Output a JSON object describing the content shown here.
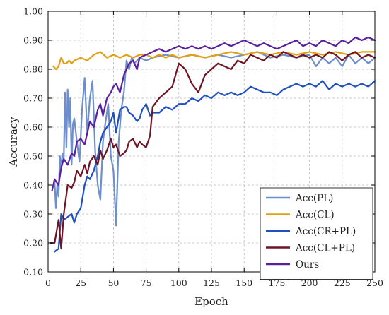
{
  "chart_data": {
    "type": "line",
    "xlabel": "Epoch",
    "ylabel": "Accuracy",
    "xlim": [
      0,
      250
    ],
    "ylim": [
      0.1,
      1.0
    ],
    "xticks": [
      0,
      25,
      50,
      75,
      100,
      125,
      150,
      175,
      200,
      225,
      250
    ],
    "yticks": [
      "0.10",
      "0.20",
      "0.30",
      "0.40",
      "0.50",
      "0.60",
      "0.70",
      "0.80",
      "0.90",
      "1.00"
    ],
    "grid": true,
    "legend_position": "bottom-right",
    "series": [
      {
        "name": "Acc(PL)",
        "color": "#6f8fcc",
        "x": [
          5,
          6,
          7,
          8,
          9,
          10,
          11,
          12,
          13,
          14,
          15,
          16,
          17,
          18,
          19,
          20,
          22,
          24,
          26,
          28,
          30,
          32,
          34,
          36,
          38,
          40,
          42,
          44,
          46,
          48,
          50,
          52,
          54,
          56,
          58,
          60,
          62,
          64,
          66,
          70,
          75,
          80,
          90,
          100,
          110,
          120,
          130,
          140,
          150,
          160,
          170,
          180,
          190,
          200,
          205,
          210,
          215,
          220,
          225,
          230,
          235,
          240,
          245,
          250
        ],
        "y": [
          0.41,
          0.32,
          0.4,
          0.36,
          0.5,
          0.46,
          0.51,
          0.49,
          0.72,
          0.53,
          0.73,
          0.6,
          0.7,
          0.47,
          0.61,
          0.63,
          0.55,
          0.48,
          0.66,
          0.77,
          0.58,
          0.7,
          0.76,
          0.52,
          0.4,
          0.35,
          0.55,
          0.62,
          0.68,
          0.5,
          0.45,
          0.26,
          0.55,
          0.66,
          0.72,
          0.83,
          0.8,
          0.84,
          0.82,
          0.84,
          0.83,
          0.84,
          0.85,
          0.84,
          0.85,
          0.84,
          0.85,
          0.84,
          0.85,
          0.86,
          0.84,
          0.85,
          0.84,
          0.85,
          0.81,
          0.84,
          0.82,
          0.84,
          0.81,
          0.85,
          0.82,
          0.84,
          0.82,
          0.84
        ]
      },
      {
        "name": "Acc(CL)",
        "color": "#e0a015",
        "x": [
          4,
          6,
          8,
          10,
          12,
          14,
          16,
          18,
          20,
          25,
          30,
          35,
          40,
          45,
          50,
          55,
          60,
          65,
          70,
          75,
          80,
          85,
          90,
          95,
          100,
          110,
          120,
          130,
          140,
          150,
          160,
          170,
          180,
          190,
          200,
          210,
          220,
          230,
          240,
          250
        ],
        "y": [
          0.81,
          0.8,
          0.81,
          0.84,
          0.82,
          0.82,
          0.83,
          0.82,
          0.83,
          0.84,
          0.83,
          0.85,
          0.86,
          0.84,
          0.85,
          0.84,
          0.85,
          0.84,
          0.85,
          0.85,
          0.84,
          0.85,
          0.84,
          0.85,
          0.84,
          0.85,
          0.84,
          0.85,
          0.86,
          0.85,
          0.86,
          0.85,
          0.86,
          0.85,
          0.86,
          0.85,
          0.86,
          0.85,
          0.86,
          0.86
        ]
      },
      {
        "name": "Acc(CR+PL)",
        "color": "#1f50c0",
        "x": [
          5,
          8,
          10,
          12,
          15,
          18,
          20,
          22,
          25,
          28,
          30,
          32,
          35,
          38,
          40,
          42,
          45,
          48,
          50,
          52,
          55,
          58,
          60,
          62,
          65,
          68,
          70,
          72,
          75,
          78,
          80,
          85,
          90,
          95,
          100,
          105,
          110,
          115,
          120,
          125,
          130,
          135,
          140,
          145,
          150,
          155,
          160,
          165,
          170,
          175,
          180,
          185,
          190,
          195,
          200,
          205,
          210,
          215,
          220,
          225,
          230,
          235,
          240,
          245,
          250
        ],
        "y": [
          0.17,
          0.18,
          0.3,
          0.28,
          0.29,
          0.3,
          0.27,
          0.3,
          0.32,
          0.4,
          0.43,
          0.42,
          0.45,
          0.5,
          0.55,
          0.58,
          0.6,
          0.62,
          0.65,
          0.58,
          0.66,
          0.67,
          0.67,
          0.65,
          0.64,
          0.62,
          0.63,
          0.66,
          0.68,
          0.64,
          0.65,
          0.65,
          0.67,
          0.66,
          0.68,
          0.68,
          0.7,
          0.69,
          0.71,
          0.7,
          0.72,
          0.71,
          0.72,
          0.71,
          0.72,
          0.74,
          0.73,
          0.72,
          0.72,
          0.71,
          0.73,
          0.74,
          0.75,
          0.74,
          0.75,
          0.74,
          0.76,
          0.73,
          0.75,
          0.74,
          0.75,
          0.74,
          0.75,
          0.74,
          0.76
        ]
      },
      {
        "name": "Acc(CL+PL)",
        "color": "#6d1525",
        "x": [
          2,
          5,
          8,
          10,
          12,
          15,
          18,
          20,
          22,
          25,
          28,
          30,
          32,
          35,
          38,
          40,
          42,
          45,
          48,
          50,
          52,
          55,
          58,
          60,
          62,
          65,
          68,
          70,
          72,
          75,
          78,
          80,
          85,
          90,
          95,
          100,
          105,
          110,
          115,
          120,
          125,
          130,
          135,
          140,
          145,
          150,
          155,
          160,
          165,
          170,
          175,
          180,
          185,
          190,
          195,
          200,
          205,
          210,
          215,
          220,
          225,
          230,
          235,
          240,
          245,
          250
        ],
        "y": [
          0.2,
          0.2,
          0.28,
          0.18,
          0.3,
          0.4,
          0.39,
          0.41,
          0.45,
          0.43,
          0.47,
          0.44,
          0.48,
          0.5,
          0.47,
          0.52,
          0.49,
          0.52,
          0.56,
          0.53,
          0.54,
          0.5,
          0.51,
          0.52,
          0.55,
          0.56,
          0.53,
          0.55,
          0.54,
          0.53,
          0.57,
          0.67,
          0.7,
          0.72,
          0.74,
          0.82,
          0.8,
          0.75,
          0.72,
          0.78,
          0.8,
          0.82,
          0.81,
          0.8,
          0.83,
          0.82,
          0.85,
          0.84,
          0.83,
          0.85,
          0.84,
          0.86,
          0.85,
          0.84,
          0.85,
          0.84,
          0.85,
          0.84,
          0.86,
          0.85,
          0.83,
          0.85,
          0.86,
          0.84,
          0.85,
          0.84
        ]
      },
      {
        "name": "Ours",
        "color": "#5a20a0",
        "x": [
          3,
          5,
          8,
          10,
          12,
          15,
          18,
          20,
          22,
          25,
          28,
          30,
          32,
          35,
          38,
          40,
          42,
          45,
          48,
          50,
          52,
          55,
          58,
          60,
          62,
          65,
          68,
          70,
          75,
          80,
          85,
          90,
          95,
          100,
          105,
          110,
          115,
          120,
          125,
          130,
          135,
          140,
          145,
          150,
          155,
          160,
          165,
          170,
          175,
          180,
          185,
          190,
          195,
          200,
          205,
          210,
          215,
          220,
          225,
          230,
          235,
          240,
          245,
          250
        ],
        "y": [
          0.38,
          0.42,
          0.4,
          0.46,
          0.49,
          0.47,
          0.51,
          0.5,
          0.55,
          0.56,
          0.54,
          0.58,
          0.62,
          0.6,
          0.66,
          0.68,
          0.64,
          0.7,
          0.72,
          0.74,
          0.75,
          0.72,
          0.78,
          0.8,
          0.82,
          0.83,
          0.8,
          0.84,
          0.85,
          0.86,
          0.87,
          0.86,
          0.87,
          0.88,
          0.87,
          0.88,
          0.87,
          0.88,
          0.87,
          0.88,
          0.89,
          0.88,
          0.89,
          0.9,
          0.89,
          0.88,
          0.89,
          0.88,
          0.87,
          0.88,
          0.89,
          0.9,
          0.88,
          0.89,
          0.88,
          0.9,
          0.89,
          0.88,
          0.9,
          0.89,
          0.91,
          0.9,
          0.91,
          0.9
        ]
      }
    ]
  }
}
